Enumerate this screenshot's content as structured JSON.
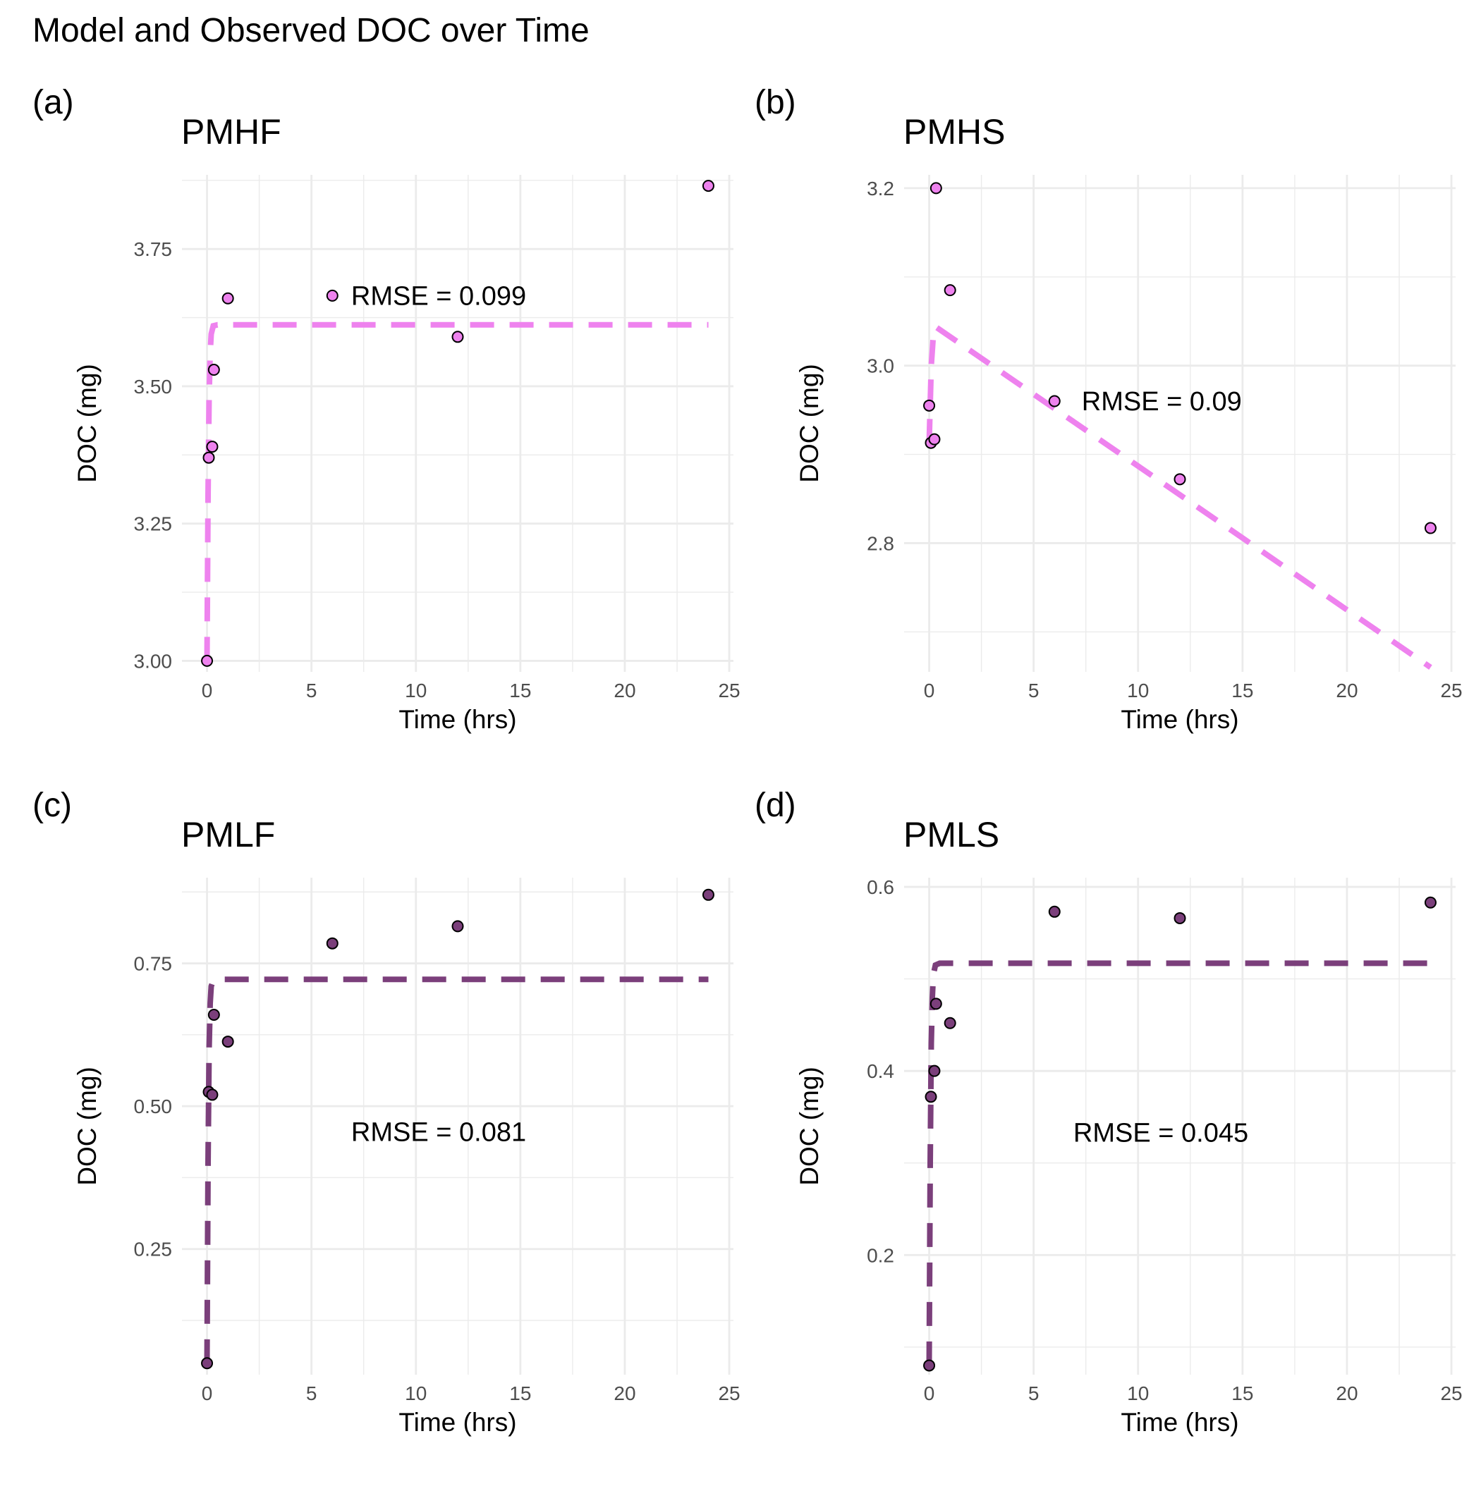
{
  "title": "Model and Observed DOC over Time",
  "colors": {
    "light": "#EE82EE",
    "dark": "#7B3F7B",
    "grid": "#ebebeb",
    "point_stroke": "#000000"
  },
  "chart_data": [
    {
      "panel": "(a)",
      "type": "scatter",
      "title": "PMHF",
      "xlabel": "Time (hrs)",
      "ylabel": "DOC (mg)",
      "xlim": [
        -1.2,
        25.2
      ],
      "ylim": [
        2.98,
        3.885
      ],
      "x_ticks": [
        0,
        5,
        10,
        15,
        20,
        25
      ],
      "y_ticks": [
        3.0,
        3.25,
        3.5,
        3.75
      ],
      "y_tick_labels": [
        "3.00",
        "3.25",
        "3.50",
        "3.75"
      ],
      "color": "#EE82EE",
      "observed": {
        "x": [
          0,
          0.083,
          0.25,
          0.33,
          1,
          6,
          12,
          24
        ],
        "y": [
          3.0,
          3.37,
          3.39,
          3.53,
          3.66,
          3.665,
          3.59,
          3.865
        ]
      },
      "model": {
        "x": [
          0,
          0.05,
          0.1,
          0.15,
          0.2,
          0.3,
          0.5,
          1,
          24
        ],
        "y": [
          3.0,
          3.3,
          3.48,
          3.56,
          3.595,
          3.61,
          3.612,
          3.612,
          3.612
        ]
      },
      "annotation": {
        "text": "RMSE = 0.099",
        "x": 6.9,
        "y": 3.665
      }
    },
    {
      "panel": "(b)",
      "type": "scatter",
      "title": "PMHS",
      "xlabel": "Time (hrs)",
      "ylabel": "DOC (mg)",
      "xlim": [
        -1.2,
        25.2
      ],
      "ylim": [
        2.655,
        3.215
      ],
      "x_ticks": [
        0,
        5,
        10,
        15,
        20,
        25
      ],
      "y_ticks": [
        2.8,
        3.0,
        3.2
      ],
      "y_tick_labels": [
        "2.8",
        "3.0",
        "3.2"
      ],
      "color": "#EE82EE",
      "observed": {
        "x": [
          0,
          0.083,
          0.25,
          0.33,
          1,
          6,
          12,
          24
        ],
        "y": [
          2.955,
          2.913,
          2.917,
          3.2,
          3.085,
          2.96,
          2.872,
          2.817
        ]
      },
      "model": {
        "x": [
          0,
          0.1,
          0.2,
          0.3,
          24
        ],
        "y": [
          2.913,
          3.0,
          3.035,
          3.044,
          2.66
        ]
      },
      "annotation": {
        "text": "RMSE = 0.09",
        "x": 7.3,
        "y": 2.96
      }
    },
    {
      "panel": "(c)",
      "type": "scatter",
      "title": "PMLF",
      "xlabel": "Time (hrs)",
      "ylabel": "DOC (mg)",
      "xlim": [
        -1.2,
        25.2
      ],
      "ylim": [
        0.03,
        0.9
      ],
      "x_ticks": [
        0,
        5,
        10,
        15,
        20,
        25
      ],
      "y_ticks": [
        0.25,
        0.5,
        0.75
      ],
      "y_tick_labels": [
        "0.25",
        "0.50",
        "0.75"
      ],
      "color": "#7B3F7B",
      "observed": {
        "x": [
          0,
          0.083,
          0.25,
          0.33,
          1,
          6,
          12,
          24
        ],
        "y": [
          0.05,
          0.525,
          0.52,
          0.66,
          0.613,
          0.785,
          0.815,
          0.87
        ]
      },
      "model": {
        "x": [
          0,
          0.05,
          0.1,
          0.15,
          0.2,
          0.3,
          0.5,
          1,
          24
        ],
        "y": [
          0.05,
          0.4,
          0.6,
          0.68,
          0.71,
          0.72,
          0.722,
          0.722,
          0.722
        ]
      },
      "annotation": {
        "text": "RMSE = 0.081",
        "x": 6.9,
        "y": 0.455
      }
    },
    {
      "panel": "(d)",
      "type": "scatter",
      "title": "PMLS",
      "xlabel": "Time (hrs)",
      "ylabel": "DOC (mg)",
      "xlim": [
        -1.2,
        25.2
      ],
      "ylim": [
        0.07,
        0.61
      ],
      "x_ticks": [
        0,
        5,
        10,
        15,
        20,
        25
      ],
      "y_ticks": [
        0.2,
        0.4,
        0.6
      ],
      "y_tick_labels": [
        "0.2",
        "0.4",
        "0.6"
      ],
      "color": "#7B3F7B",
      "observed": {
        "x": [
          0,
          0.083,
          0.25,
          0.33,
          1,
          6,
          12,
          24
        ],
        "y": [
          0.08,
          0.372,
          0.4,
          0.473,
          0.452,
          0.573,
          0.566,
          0.583
        ]
      },
      "model": {
        "x": [
          0,
          0.05,
          0.1,
          0.15,
          0.2,
          0.3,
          0.5,
          1,
          24
        ],
        "y": [
          0.08,
          0.3,
          0.43,
          0.48,
          0.505,
          0.515,
          0.517,
          0.517,
          0.517
        ]
      },
      "annotation": {
        "text": "RMSE = 0.045",
        "x": 6.9,
        "y": 0.333
      }
    }
  ]
}
